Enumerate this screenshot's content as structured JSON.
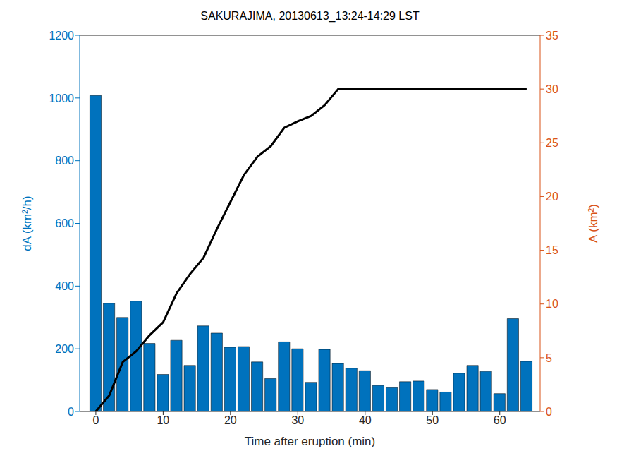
{
  "chart_data": {
    "type": "bar",
    "title": "SAKURAJIMA, 20130613_13:24-14:29 LST",
    "xlabel": "Time after eruption (min)",
    "ylabel": "dA (km²/h)",
    "y2label": "A (km²)",
    "x": [
      0,
      2,
      4,
      6,
      8,
      10,
      12,
      14,
      16,
      18,
      20,
      22,
      24,
      26,
      28,
      30,
      32,
      34,
      36,
      38,
      40,
      42,
      44,
      46,
      48,
      50,
      52,
      54,
      56,
      58,
      60,
      62,
      64
    ],
    "series": [
      {
        "type": "bar",
        "color": "#0072bd",
        "values": [
          1008,
          345,
          300,
          352,
          217,
          118,
          227,
          147,
          273,
          250,
          205,
          207,
          158,
          105,
          222,
          200,
          93,
          198,
          153,
          138,
          130,
          83,
          76,
          95,
          97,
          70,
          62,
          122,
          147,
          128,
          57,
          296,
          160
        ]
      },
      {
        "type": "line",
        "axis": "y2",
        "color": "#000000",
        "values": [
          0,
          1.5,
          4.6,
          5.6,
          7.1,
          8.3,
          11,
          12.8,
          14.3,
          17,
          19.5,
          22,
          23.7,
          24.7,
          26.4,
          27,
          27.5,
          28.5,
          30,
          30,
          30,
          30,
          30,
          30,
          30,
          30,
          30,
          30,
          30,
          30,
          30,
          30,
          30
        ]
      }
    ],
    "xlim": [
      -2.4,
      66
    ],
    "xticks": [
      0,
      10,
      20,
      30,
      40,
      50,
      60
    ],
    "ylim": [
      0,
      1200
    ],
    "yticks": [
      0,
      200,
      400,
      600,
      800,
      1000,
      1200
    ],
    "y2lim": [
      0,
      35
    ],
    "y2ticks": [
      0,
      5,
      10,
      15,
      20,
      25,
      30,
      35
    ],
    "y2color": "#d95319"
  }
}
